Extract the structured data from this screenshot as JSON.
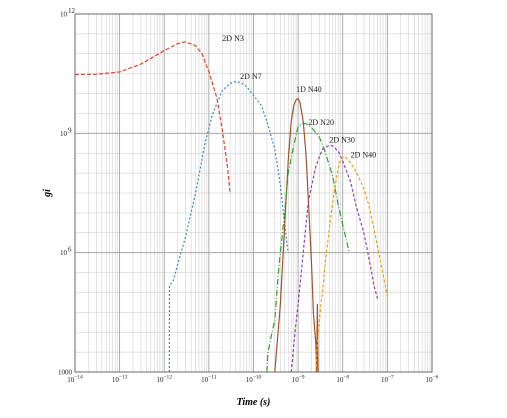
{
  "chart_data": {
    "type": "line",
    "title": "",
    "xlabel": "Time (s)",
    "ylabel": "gi",
    "x_scale": "log",
    "y_scale": "log",
    "xlim": [
      1e-14,
      1e-06
    ],
    "ylim": [
      1000,
      1000000000000.0
    ],
    "grid": true,
    "x_ticks": [
      {
        "value": 1e-14,
        "base": "10",
        "exp": "−14"
      },
      {
        "value": 1e-13,
        "base": "10",
        "exp": "−13"
      },
      {
        "value": 1e-12,
        "base": "10",
        "exp": "−12"
      },
      {
        "value": 1e-11,
        "base": "10",
        "exp": "−11"
      },
      {
        "value": 1e-10,
        "base": "10",
        "exp": "−10"
      },
      {
        "value": 1e-09,
        "base": "10",
        "exp": "−9"
      },
      {
        "value": 1e-08,
        "base": "10",
        "exp": "−8"
      },
      {
        "value": 1e-07,
        "base": "10",
        "exp": "−7"
      },
      {
        "value": 1e-06,
        "base": "10",
        "exp": "−6"
      }
    ],
    "y_ticks": [
      {
        "value": 1000,
        "base": "1000",
        "exp": ""
      },
      {
        "value": 1000000.0,
        "base": "10",
        "exp": "6"
      },
      {
        "value": 1000000000.0,
        "base": "10",
        "exp": "9"
      },
      {
        "value": 1000000000000.0,
        "base": "10",
        "exp": "12"
      }
    ],
    "series": [
      {
        "name": "2D N3",
        "color": "#e8402a",
        "dash": "4,2",
        "x": [
          1e-14,
          3e-14,
          1e-13,
          3e-13,
          1e-12,
          2e-12,
          3e-12,
          5e-12,
          7e-12,
          1e-11,
          1.5e-11,
          2e-11,
          2.6e-11,
          3e-11
        ],
        "y": [
          30000000000.0,
          30500000000.0,
          35000000000.0,
          55000000000.0,
          120000000000.0,
          180000000000.0,
          200000000000.0,
          160000000000.0,
          100000000000.0,
          35000000000.0,
          8000000000.0,
          1200000000.0,
          150000000.0,
          30000000.0
        ]
      },
      {
        "name": "2D N7",
        "color": "#3a86c8",
        "dash": "2,2",
        "x": [
          1.3e-12,
          1.31e-12,
          1.6e-12,
          2e-12,
          3e-12,
          5e-12,
          8e-12,
          1.2e-11,
          2e-11,
          3e-11,
          4e-11,
          5e-11,
          7e-11,
          1e-10,
          1.5e-10,
          2e-10,
          3e-10,
          4e-10,
          5e-10,
          6e-10
        ],
        "y": [
          1000.0,
          150000.0,
          200000.0,
          500000.0,
          2500000.0,
          30000000.0,
          500000000.0,
          3000000000.0,
          12000000000.0,
          18000000000.0,
          20000000000.0,
          19000000000.0,
          15000000000.0,
          9000000000.0,
          5000000000.0,
          2000000000.0,
          400000000.0,
          50000000.0,
          5000000.0,
          1000000.0
        ]
      },
      {
        "name": "1D N40",
        "color": "#a0522d",
        "dash": "",
        "x": [
          3e-10,
          4e-10,
          5e-10,
          6e-10,
          7e-10,
          8e-10,
          9e-10,
          1e-09,
          1.1e-09,
          1.3e-09,
          1.5e-09,
          1.7e-09,
          2e-09,
          2.2e-09,
          2.5e-09,
          2.6e-09,
          2.7e-09,
          2.8e-09
        ],
        "y": [
          1000.0,
          50000.0,
          5000000.0,
          200000000.0,
          2000000000.0,
          5000000000.0,
          7000000000.0,
          7500000000.0,
          6000000000.0,
          2000000000.0,
          300000000.0,
          20000000.0,
          500000.0,
          30000.0,
          5000.0,
          1000.0,
          50000.0,
          1000.0
        ]
      },
      {
        "name": "2D N20",
        "color": "#2ca02c",
        "dash": "6,2,1,2",
        "x": [
          2e-10,
          2.1e-10,
          2.5e-10,
          3e-10,
          3.6e-10,
          4e-10,
          5e-10,
          6e-10,
          8e-10,
          1e-09,
          1.3e-09,
          1.6e-09,
          2e-09,
          3e-09,
          4e-09,
          6e-09,
          8e-09,
          1e-08,
          1.4e-08
        ],
        "y": [
          1000.0,
          3000.0,
          8000.0,
          20000.0,
          300000.0,
          1000000.0,
          10000000.0,
          100000000.0,
          500000000.0,
          1500000000.0,
          1800000000.0,
          1700000000.0,
          1400000000.0,
          800000000.0,
          350000000.0,
          80000000.0,
          15000000.0,
          5000000.0,
          1000000.0
        ]
      },
      {
        "name": "2D N30",
        "color": "#8e44ad",
        "dash": "3,2",
        "x": [
          7e-10,
          7.5e-10,
          8e-10,
          8.5e-10,
          1e-09,
          1.3e-09,
          1.7e-09,
          2.5e-09,
          3.5e-09,
          5e-09,
          6e-09,
          8e-09,
          1e-08,
          1.5e-08,
          2e-08,
          3e-08,
          4e-08,
          5e-08,
          6e-08
        ],
        "y": [
          1000.0,
          2000.0,
          5000.0,
          10000.0,
          50000.0,
          1000000.0,
          20000000.0,
          150000000.0,
          400000000.0,
          500000000.0,
          480000000.0,
          350000000.0,
          200000000.0,
          60000000.0,
          15000000.0,
          3000000.0,
          600000.0,
          150000.0,
          70000.0
        ]
      },
      {
        "name": "2D N40",
        "color": "#f39c12",
        "dash": "3,2",
        "x": [
          2.5e-09,
          2.7e-09,
          3e-09,
          3.3e-09,
          3.5e-09,
          4e-09,
          5e-09,
          6e-09,
          7e-09,
          8e-09,
          9e-09,
          1e-08,
          1.1e-08,
          1.2e-08,
          1.5e-08,
          2e-08,
          3e-08,
          4e-08,
          5e-08,
          7e-08,
          9e-08,
          1e-07
        ],
        "y": [
          1000.0,
          5000.0,
          20000.0,
          60000.0,
          100000.0,
          500000.0,
          4000000.0,
          20000000.0,
          60000000.0,
          140000000.0,
          220000000.0,
          250000000.0,
          260000000.0,
          240000000.0,
          180000000.0,
          110000000.0,
          40000000.0,
          13000000.0,
          4000000.0,
          600000.0,
          150000.0,
          80000.0
        ]
      }
    ],
    "labels": [
      {
        "text": "2D N3",
        "x": 2e-11,
        "y": 210000000000.0
      },
      {
        "text": "2D N7",
        "x": 5e-11,
        "y": 23000000000.0
      },
      {
        "text": "1D N40",
        "x": 9e-10,
        "y": 11000000000.0
      },
      {
        "text": "2D N20",
        "x": 1.7e-09,
        "y": 1600000000.0
      },
      {
        "text": "2D N30",
        "x": 5e-09,
        "y": 580000000.0
      },
      {
        "text": "2D N40",
        "x": 1.5e-08,
        "y": 250000000.0
      }
    ]
  }
}
